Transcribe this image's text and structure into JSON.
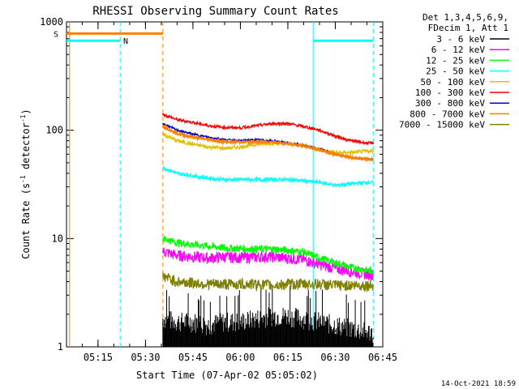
{
  "chart_data": {
    "type": "line",
    "title": "RHESSI Observing Summary Count Rates",
    "xlabel": "Start Time (07-Apr-02 05:05:02)",
    "ylabel": "Count Rate (s⁻¹ detector⁻¹)",
    "ylabel_main": "Count Rate (s",
    "ylabel_sup1": "-1",
    "ylabel_mid": " detector",
    "ylabel_sup2": "-1",
    "ylabel_end": ")",
    "y_scale": "log",
    "ylim": [
      1,
      1000
    ],
    "xlim": [
      "05:05:02",
      "06:45:00"
    ],
    "x_ticks": [
      "05:15",
      "05:30",
      "05:45",
      "06:00",
      "06:15",
      "06:30",
      "06:45"
    ],
    "y_ticks": [
      "1",
      "10",
      "100",
      "1000"
    ],
    "legend_position": "right",
    "legend_header": [
      "Det 1,3,4,5,6,9,",
      "FDecim 1, Att 1"
    ],
    "series": [
      {
        "name": "3 - 6 keV",
        "color": "#000000",
        "x": [
          "05:35:30",
          "05:40",
          "05:45",
          "05:50",
          "05:55",
          "06:00",
          "06:05",
          "06:10",
          "06:15",
          "06:20",
          "06:25",
          "06:30",
          "06:35",
          "06:40",
          "06:42"
        ],
        "values": [
          1.6,
          1.5,
          1.5,
          1.4,
          1.5,
          1.5,
          1.6,
          1.7,
          1.7,
          1.6,
          1.5,
          1.4,
          1.3,
          1.2,
          1.2
        ]
      },
      {
        "name": "6 - 12 keV",
        "color": "#ff00ff",
        "x": [
          "05:35:30",
          "05:40",
          "05:45",
          "05:50",
          "05:55",
          "06:00",
          "06:05",
          "06:10",
          "06:15",
          "06:20",
          "06:25",
          "06:30",
          "06:35",
          "06:40",
          "06:42"
        ],
        "values": [
          7.6,
          7.0,
          6.8,
          6.6,
          6.8,
          6.7,
          6.8,
          6.8,
          6.6,
          6.4,
          5.8,
          5.3,
          5.0,
          4.7,
          4.7
        ]
      },
      {
        "name": "12 - 25 keV",
        "color": "#00ff00",
        "x": [
          "05:35:30",
          "05:40",
          "05:45",
          "05:50",
          "05:55",
          "06:00",
          "06:05",
          "06:10",
          "06:15",
          "06:20",
          "06:25",
          "06:30",
          "06:35",
          "06:40",
          "06:42"
        ],
        "values": [
          10.0,
          9.2,
          8.8,
          8.5,
          8.2,
          8.1,
          8.0,
          8.0,
          7.8,
          7.5,
          6.6,
          6.0,
          5.4,
          5.1,
          5.0
        ]
      },
      {
        "name": "25 - 50 keV",
        "color": "#00ffff",
        "x": [
          "05:35:30",
          "05:40",
          "05:45",
          "05:50",
          "05:55",
          "06:00",
          "06:05",
          "06:10",
          "06:15",
          "06:20",
          "06:25",
          "06:30",
          "06:35",
          "06:40",
          "06:42"
        ],
        "values": [
          45,
          40,
          38,
          36,
          35,
          35,
          35,
          35,
          35,
          34,
          33,
          31,
          32,
          33,
          33
        ]
      },
      {
        "name": "50 - 100 keV",
        "color": "#e0c000",
        "x": [
          "05:35:30",
          "05:40",
          "05:45",
          "05:50",
          "05:55",
          "06:00",
          "06:05",
          "06:10",
          "06:15",
          "06:20",
          "06:25",
          "06:30",
          "06:35",
          "06:40",
          "06:42"
        ],
        "values": [
          92,
          80,
          74,
          70,
          68,
          70,
          74,
          76,
          75,
          72,
          66,
          62,
          62,
          64,
          64
        ]
      },
      {
        "name": "100 - 300 keV",
        "color": "#ff0000",
        "x": [
          "05:35:30",
          "05:40",
          "05:45",
          "05:50",
          "05:55",
          "06:00",
          "06:05",
          "06:10",
          "06:15",
          "06:20",
          "06:25",
          "06:30",
          "06:35",
          "06:40",
          "06:42"
        ],
        "values": [
          140,
          125,
          118,
          110,
          106,
          105,
          110,
          115,
          115,
          108,
          100,
          88,
          80,
          76,
          76
        ]
      },
      {
        "name": "300 - 800 keV",
        "color": "#0000cc",
        "x": [
          "05:35:30",
          "05:40",
          "05:45",
          "05:50",
          "05:55",
          "06:00",
          "06:05",
          "06:10",
          "06:15",
          "06:20",
          "06:25",
          "06:30",
          "06:35",
          "06:40",
          "06:42"
        ],
        "values": [
          115,
          100,
          92,
          86,
          82,
          80,
          82,
          80,
          76,
          72,
          67,
          60,
          56,
          54,
          54
        ]
      },
      {
        "name": "800 - 7000 keV",
        "color": "#ff8000",
        "x": [
          "05:35:30",
          "05:40",
          "05:45",
          "05:50",
          "05:55",
          "06:00",
          "06:05",
          "06:10",
          "06:15",
          "06:20",
          "06:25",
          "06:30",
          "06:35",
          "06:40",
          "06:42"
        ],
        "values": [
          108,
          93,
          86,
          82,
          78,
          78,
          78,
          78,
          75,
          72,
          66,
          60,
          56,
          54,
          54
        ]
      },
      {
        "name": "7000 - 15000 keV",
        "color": "#808000",
        "x": [
          "05:35:30",
          "05:40",
          "05:45",
          "05:50",
          "05:55",
          "06:00",
          "06:05",
          "06:10",
          "06:15",
          "06:20",
          "06:25",
          "06:30",
          "06:35",
          "06:40",
          "06:42"
        ],
        "values": [
          4.5,
          4.0,
          3.9,
          3.8,
          3.8,
          3.8,
          3.8,
          3.7,
          3.8,
          3.8,
          3.8,
          3.7,
          3.7,
          3.7,
          3.7
        ]
      }
    ],
    "annotations": [
      {
        "label": "S",
        "color": "#ff8000",
        "x_start": "05:05:02",
        "x_end": "05:35:30",
        "y": 780
      },
      {
        "label": "N",
        "color": "#00ffff",
        "x_start": "05:05:02",
        "x_end": "05:22",
        "y": 670
      },
      {
        "label": "",
        "color": "#00ffff",
        "x_start": "06:23",
        "x_end": "06:42",
        "y": 670
      }
    ],
    "vertical_markers": [
      {
        "x": "05:06",
        "color": "#ff8000",
        "style": "solid"
      },
      {
        "x": "05:22",
        "color": "#00ffff",
        "style": "dashed"
      },
      {
        "x": "05:35:30",
        "color": "#ff8000",
        "style": "dashed"
      },
      {
        "x": "06:23",
        "color": "#00ffff",
        "style": "solid"
      },
      {
        "x": "06:42",
        "color": "#00ffff",
        "style": "dashed"
      }
    ],
    "timestamp": "14-Oct-2021 18:59"
  }
}
